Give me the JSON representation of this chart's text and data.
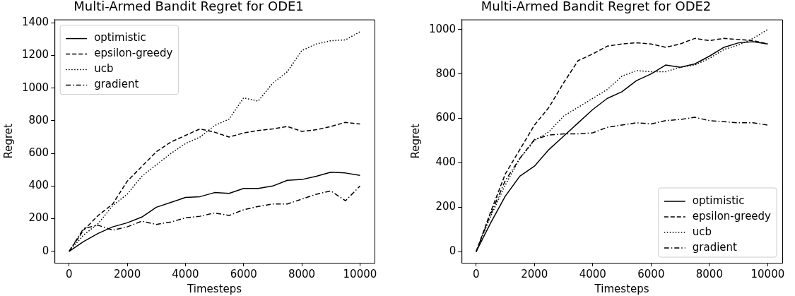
{
  "chart_data": [
    {
      "type": "line",
      "title": "Multi-Armed Bandit Regret for ODE1",
      "xlabel": "Timesteps",
      "ylabel": "Regret",
      "x": [
        0,
        500,
        1000,
        1500,
        2000,
        2500,
        3000,
        3500,
        4000,
        4500,
        5000,
        5500,
        6000,
        6500,
        7000,
        7500,
        8000,
        8500,
        9000,
        9500,
        10000
      ],
      "series": [
        {
          "name": "optimistic",
          "color": "#000000",
          "line_style": "solid",
          "values": [
            0,
            60,
            110,
            150,
            175,
            210,
            270,
            300,
            330,
            335,
            360,
            355,
            385,
            385,
            400,
            435,
            440,
            460,
            485,
            480,
            465
          ]
        },
        {
          "name": "epsilon-greedy",
          "color": "#000000",
          "line_style": "dashed",
          "values": [
            0,
            130,
            220,
            290,
            430,
            520,
            610,
            670,
            710,
            750,
            730,
            700,
            725,
            740,
            750,
            765,
            735,
            745,
            765,
            790,
            780
          ]
        },
        {
          "name": "ucb",
          "color": "#000000",
          "line_style": "dotted",
          "values": [
            0,
            100,
            170,
            280,
            350,
            460,
            530,
            600,
            660,
            700,
            770,
            810,
            940,
            920,
            1030,
            1100,
            1230,
            1270,
            1290,
            1295,
            1345
          ]
        },
        {
          "name": "gradient",
          "color": "#000000",
          "line_style": "dashdot",
          "values": [
            0,
            140,
            160,
            130,
            150,
            185,
            165,
            180,
            205,
            215,
            235,
            220,
            255,
            275,
            290,
            290,
            320,
            350,
            370,
            310,
            400
          ]
        }
      ],
      "xlim": [
        -500,
        10500
      ],
      "xticks": [
        0,
        2000,
        4000,
        6000,
        8000,
        10000
      ],
      "ylim": [
        -70,
        1420
      ],
      "yticks": [
        0,
        200,
        400,
        600,
        800,
        1000,
        1200,
        1400
      ],
      "legend": "top left",
      "grid": false,
      "marker": "none"
    },
    {
      "type": "line",
      "title": "Multi-Armed Bandit Regret for ODE2",
      "xlabel": "Timesteps",
      "ylabel": "Regret",
      "x": [
        0,
        500,
        1000,
        1500,
        2000,
        2500,
        3000,
        3500,
        4000,
        4500,
        5000,
        5500,
        6000,
        6500,
        7000,
        7500,
        8000,
        8500,
        9000,
        9500,
        10000
      ],
      "series": [
        {
          "name": "optimistic",
          "color": "#000000",
          "line_style": "solid",
          "values": [
            0,
            130,
            250,
            340,
            385,
            460,
            520,
            580,
            640,
            690,
            720,
            770,
            800,
            840,
            830,
            845,
            880,
            920,
            940,
            945,
            935
          ]
        },
        {
          "name": "epsilon-greedy",
          "color": "#000000",
          "line_style": "dashed",
          "values": [
            0,
            180,
            350,
            460,
            570,
            650,
            760,
            860,
            890,
            925,
            935,
            940,
            935,
            920,
            935,
            960,
            950,
            960,
            955,
            950,
            935
          ]
        },
        {
          "name": "ucb",
          "color": "#000000",
          "line_style": "dotted",
          "values": [
            0,
            160,
            300,
            420,
            500,
            540,
            610,
            650,
            690,
            730,
            790,
            815,
            810,
            810,
            830,
            840,
            870,
            910,
            930,
            960,
            1000
          ]
        },
        {
          "name": "gradient",
          "color": "#000000",
          "line_style": "dashdot",
          "values": [
            0,
            170,
            320,
            420,
            505,
            525,
            530,
            530,
            535,
            560,
            570,
            580,
            575,
            590,
            595,
            605,
            590,
            585,
            580,
            580,
            570
          ]
        }
      ],
      "xlim": [
        -500,
        10500
      ],
      "xticks": [
        0,
        2000,
        4000,
        6000,
        8000,
        10000
      ],
      "ylim": [
        -50,
        1045
      ],
      "yticks": [
        0,
        200,
        400,
        600,
        800,
        1000
      ],
      "legend": "bottom right",
      "grid": false,
      "marker": "none"
    }
  ]
}
